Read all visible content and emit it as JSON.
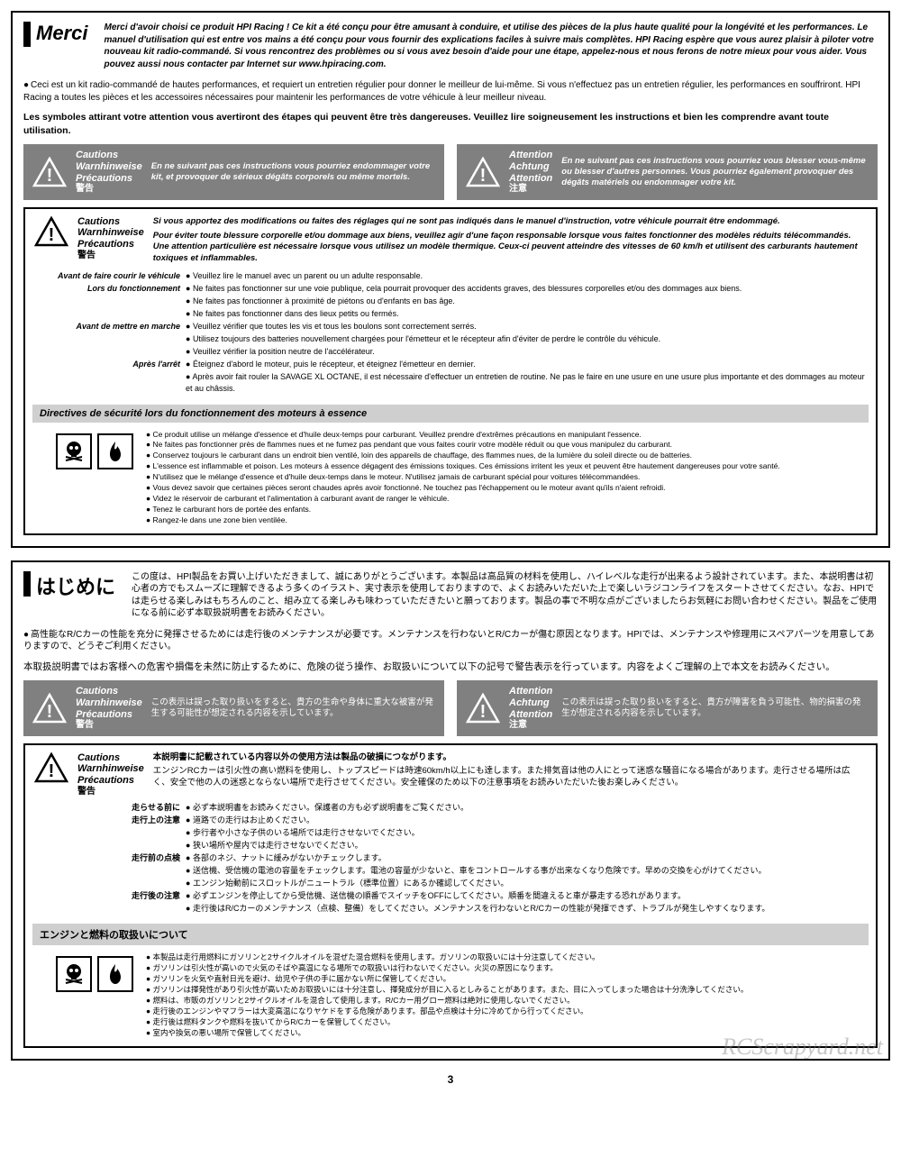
{
  "page_number": "3",
  "watermark": "RCScrapyard.net",
  "colors": {
    "warn_bg": "#808080",
    "gray_bar": "#cfcfcf",
    "border": "#000000",
    "text": "#000000"
  },
  "warn_labels": {
    "cautions": "Cautions",
    "warnhinweise": "Warnhinweise",
    "precautions": "Précautions",
    "cautions_cjk": "警告",
    "attention": "Attention",
    "achtung": "Achtung",
    "attention2": "Attention",
    "attention_cjk": "注意"
  },
  "fr": {
    "title": "Merci",
    "intro": "Merci d'avoir choisi ce produit HPI Racing ! Ce kit a été conçu pour être amusant à conduire, et utilise des pièces de la plus haute qualité pour la longévité et les performances. Le manuel d'utilisation qui est entre vos mains a été conçu pour vous fournir des explications faciles à suivre mais complètes. HPI Racing espère que vous aurez plaisir à piloter votre nouveau kit radio-commandé. Si vous rencontrez des problèmes ou si vous avez besoin d'aide pour une étape, appelez-nous et nous ferons de notre mieux pour vous aider. Vous pouvez aussi nous contacter par Internet sur www.hpiracing.com.",
    "bullet": "Ceci est un kit radio-commandé de hautes performances, et requiert un entretien régulier pour donner le meilleur de lui-même. Si vous n'effectuez pas un entretien régulier, les performances en souffriront. HPI Racing a toutes les pièces et les accessoires nécessaires pour maintenir les performances de votre véhicule à leur meilleur niveau.",
    "lead": "Les symboles attirant votre attention vous avertiront des étapes qui peuvent être très dangereuses. Veuillez lire soigneusement les instructions et bien les comprendre avant toute utilisation.",
    "warn_left": "En ne suivant pas ces instructions vous pourriez endommager votre kit, et provoquer de sérieux dégâts corporels ou même mortels.",
    "warn_right": "En ne suivant pas ces instructions vous pourriez vous blesser vous-même ou blesser d'autres personnes. Vous pourriez également provoquer des dégâts matériels ou endommager votre kit.",
    "box_head": "Si vous apportez des modifications ou faites des réglages qui ne sont pas indiqués dans le manuel d'instruction, votre véhicule pourrait être endommagé.",
    "box_para": "Pour éviter toute blessure corporelle et/ou dommage aux biens, veuillez agir d'une façon responsable lorsque vous faites fonctionner des modèles réduits télécommandés. Une attention particulière est nécessaire lorsque vous utilisez un modèle thermique. Ceux-ci peuvent atteindre des vitesses de 60 km/h et utilisent des carburants hautement toxiques et inflammables.",
    "defs": [
      {
        "t": "Avant de faire courir le véhicule",
        "d": [
          "Veuillez lire le manuel avec un parent ou un adulte responsable."
        ]
      },
      {
        "t": "Lors du fonctionnement",
        "d": [
          "Ne faites pas fonctionner sur une voie publique, cela pourrait provoquer des accidents graves, des blessures corporelles et/ou des dommages aux biens.",
          "Ne faites pas fonctionner à proximité de piétons ou d'enfants en bas âge.",
          "Ne faites pas fonctionner dans des lieux petits ou fermés."
        ]
      },
      {
        "t": "Avant de mettre en marche",
        "d": [
          "Veuillez vérifier que toutes les vis et tous les boulons sont correctement serrés.",
          "Utilisez toujours des batteries nouvellement chargées pour l'émetteur et le récepteur afin d'éviter de perdre le contrôle du véhicule.",
          "Veuillez vérifier la position neutre de l'accélérateur."
        ]
      },
      {
        "t": "Après l'arrêt",
        "d": [
          "Éteignez d'abord le moteur, puis le récepteur, et éteignez l'émetteur en dernier.",
          "Après avoir fait rouler la SAVAGE XL OCTANE, il est nécessaire d'effectuer un entretien de routine. Ne pas le faire en une usure en une usure plus importante et des dommages au moteur et au châssis."
        ]
      }
    ],
    "gray_bar": "Directives de sécurité lors du fonctionnement des moteurs à essence",
    "hazards": [
      "Ce produit utilise un mélange d'essence et d'huile deux-temps pour carburant. Veuillez prendre d'extrêmes précautions en manipulant l'essence.",
      "Ne faites pas fonctionner près de flammes nues et ne fumez pas pendant que vous faites courir votre modèle réduit ou que vous manipulez du carburant.",
      "Conservez toujours le carburant dans un endroit bien ventilé, loin des appareils de chauffage, des flammes nues, de la lumière du soleil directe ou de batteries.",
      "L'essence est inflammable et poison. Les moteurs à essence dégagent des émissions toxiques. Ces émissions irritent les yeux et peuvent être hautement dangereuses pour votre santé.",
      "N'utilisez que le mélange d'essence et d'huile deux-temps dans le moteur. N'utilisez jamais de carburant spécial pour voitures télécommandées.",
      "Vous devez savoir que certaines pièces seront chaudes après avoir fonctionné. Ne touchez pas l'échappement ou le moteur avant qu'ils n'aient refroidi.",
      "Videz le réservoir de carburant et l'alimentation à carburant avant de ranger le véhicule.",
      "Tenez le carburant hors de portée des enfants.",
      "Rangez-le dans une zone bien ventilée."
    ]
  },
  "jp": {
    "title": "はじめに",
    "intro": "この度は、HPI製品をお買い上げいただきまして、誠にありがとうございます。本製品は高品質の材料を使用し、ハイレベルな走行が出来るよう設計されています。また、本説明書は初心者の方でもスムーズに理解できるよう多くのイラスト、実寸表示を使用しておりますので、よくお読みいただいた上で楽しいラジコンライフをスタートさせてください。なお、HPIでは走らせる楽しみはもちろんのこと、組み立てる楽しみも味わっていただきたいと願っております。製品の事で不明な点がございましたらお気軽にお問い合わせください。製品をご使用になる前に必ず本取扱説明書をお読みください。",
    "bullet": "高性能なR/Cカーの性能を充分に発揮させるためには走行後のメンテナンスが必要です。メンテナンスを行わないとR/Cカーが傷む原因となります。HPIでは、メンテナンスや修理用にスペアパーツを用意してありますので、どうぞご利用ください。",
    "lead": "本取扱説明書ではお客様への危害や損傷を未然に防止するために、危険の従う操作、お取扱いについて以下の記号で警告表示を行っています。内容をよくご理解の上で本文をお読みください。",
    "warn_left": "この表示は誤った取り扱いをすると、貴方の生命や身体に重大な被害が発生する可能性が想定される内容を示しています。",
    "warn_right": "この表示は誤った取り扱いをすると、貴方が障害を負う可能性、物的損害の発生が想定される内容を示しています。",
    "box_head": "本説明書に記載されている内容以外の使用方法は製品の破損につながります。",
    "box_para": "エンジンRCカーは引火性の高い燃料を使用し、トップスピードは時速60km/h以上にも達します。また排気音は他の人にとって迷惑な騒音になる場合があります。走行させる場所は広く、安全で他の人の迷惑とならない場所で走行させてください。安全確保のため以下の注意事項をお読みいただいた後お楽しみください。",
    "defs": [
      {
        "t": "走らせる前に",
        "d": [
          "必ず本説明書をお読みください。保護者の方も必ず説明書をご覧ください。"
        ]
      },
      {
        "t": "走行上の注意",
        "d": [
          "道路での走行はお止めください。",
          "歩行者や小さな子供のいる場所では走行させないでください。",
          "狭い場所や屋内では走行させないでください。"
        ]
      },
      {
        "t": "走行前の点検",
        "d": [
          "各部のネジ、ナットに緩みがないかチェックします。",
          "送信機、受信機の電池の容量をチェックします。電池の容量が少ないと、車をコントロールする事が出来なくなり危険です。早めの交換を心がけてください。",
          "エンジン始動前にスロットルがニュートラル（標準位置）にあるか確認してください。"
        ]
      },
      {
        "t": "走行後の注意",
        "d": [
          "必ずエンジンを停止してから受信機、送信機の順番でスイッチをOFFにしてください。順番を間違えると車が暴走する恐れがあります。",
          "走行後はR/Cカーのメンテナンス（点検、整備）をしてください。メンテナンスを行わないとR/Cカーの性能が発揮できず、トラブルが発生しやすくなります。"
        ]
      }
    ],
    "gray_bar": "エンジンと燃料の取扱いについて",
    "hazards": [
      "本製品は走行用燃料にガソリンと2サイクルオイルを混ぜた混合燃料を使用します。ガソリンの取扱いには十分注意してください。",
      "ガソリンは引火性が高いので火気のそばや高温になる場所での取扱いは行わないでください。火災の原因になります。",
      "ガソリンを火気や直射日光を避け、幼児や子供の手に届かない所に保管してください。",
      "ガソリンは揮発性があり引火性が高いためお取扱いには十分注意し、揮発成分が目に入るとしみることがあります。また、目に入ってしまった場合は十分洗浄してください。",
      "燃料は、市販のガソリンと2サイクルオイルを混合して使用します。R/Cカー用グロー燃料は絶対に使用しないでください。",
      "走行後のエンジンやマフラーは大変高温になりヤケドをする危険があります。部品や点検は十分に冷めてから行ってください。",
      "走行後は燃料タンクや燃料を抜いてからR/Cカーを保管してください。",
      "室内や換気の悪い場所で保管してください。"
    ]
  }
}
